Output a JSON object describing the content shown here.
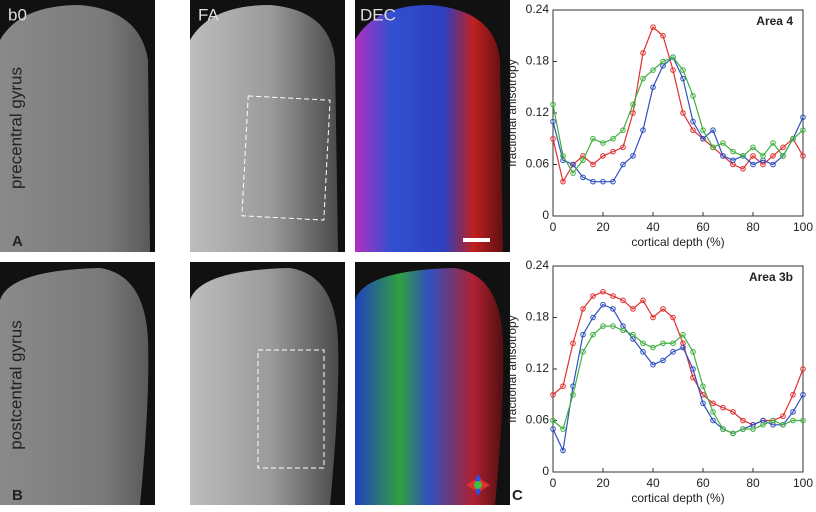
{
  "panels": {
    "columns": [
      "b0",
      "FA",
      "DEC"
    ],
    "rows": [
      "precentral gyrus",
      "postcentral gyrus"
    ],
    "letters": [
      "A",
      "B",
      "C"
    ]
  },
  "chart_data": [
    {
      "type": "line",
      "annotation": "Area 4",
      "x_label": "cortical depth (%)",
      "y_label": "fractional anisotropy",
      "x": [
        0,
        4,
        8,
        12,
        16,
        20,
        24,
        28,
        32,
        36,
        40,
        44,
        48,
        52,
        56,
        60,
        64,
        68,
        72,
        76,
        80,
        84,
        88,
        92,
        96,
        100
      ],
      "series": [
        {
          "color": "#e03030",
          "values": [
            0.09,
            0.04,
            0.06,
            0.07,
            0.06,
            0.07,
            0.075,
            0.08,
            0.12,
            0.19,
            0.22,
            0.21,
            0.17,
            0.12,
            0.1,
            0.09,
            0.08,
            0.07,
            0.06,
            0.055,
            0.07,
            0.06,
            0.07,
            0.08,
            0.09,
            0.07
          ]
        },
        {
          "color": "#3050c0",
          "values": [
            0.11,
            0.065,
            0.06,
            0.045,
            0.04,
            0.04,
            0.04,
            0.06,
            0.07,
            0.1,
            0.15,
            0.175,
            0.185,
            0.16,
            0.11,
            0.09,
            0.1,
            0.07,
            0.065,
            0.07,
            0.06,
            0.065,
            0.06,
            0.07,
            0.09,
            0.115
          ]
        },
        {
          "color": "#40b040",
          "values": [
            0.13,
            0.07,
            0.05,
            0.065,
            0.09,
            0.085,
            0.09,
            0.1,
            0.13,
            0.16,
            0.17,
            0.18,
            0.185,
            0.17,
            0.14,
            0.1,
            0.08,
            0.085,
            0.075,
            0.07,
            0.08,
            0.07,
            0.085,
            0.07,
            0.09,
            0.1
          ]
        }
      ],
      "xlim": [
        0,
        100
      ],
      "xticks": [
        0,
        20,
        40,
        60,
        80,
        100
      ],
      "ylim": [
        0,
        0.24
      ],
      "yticks": [
        0,
        0.06,
        0.12,
        0.18,
        0.24
      ]
    },
    {
      "type": "line",
      "annotation": "Area 3b",
      "x_label": "cortical depth (%)",
      "y_label": "fractional anisotropy",
      "x": [
        0,
        4,
        8,
        12,
        16,
        20,
        24,
        28,
        32,
        36,
        40,
        44,
        48,
        52,
        56,
        60,
        64,
        68,
        72,
        76,
        80,
        84,
        88,
        92,
        96,
        100
      ],
      "series": [
        {
          "color": "#e03030",
          "values": [
            0.09,
            0.1,
            0.15,
            0.19,
            0.205,
            0.21,
            0.205,
            0.2,
            0.19,
            0.2,
            0.18,
            0.19,
            0.18,
            0.15,
            0.11,
            0.09,
            0.08,
            0.075,
            0.07,
            0.06,
            0.055,
            0.06,
            0.06,
            0.065,
            0.09,
            0.12
          ]
        },
        {
          "color": "#3050c0",
          "values": [
            0.05,
            0.025,
            0.1,
            0.16,
            0.18,
            0.195,
            0.19,
            0.17,
            0.155,
            0.14,
            0.125,
            0.13,
            0.14,
            0.145,
            0.12,
            0.08,
            0.06,
            0.05,
            0.045,
            0.05,
            0.055,
            0.06,
            0.055,
            0.055,
            0.07,
            0.09
          ]
        },
        {
          "color": "#40b040",
          "values": [
            0.06,
            0.05,
            0.09,
            0.14,
            0.16,
            0.17,
            0.17,
            0.165,
            0.16,
            0.15,
            0.145,
            0.15,
            0.15,
            0.16,
            0.14,
            0.1,
            0.07,
            0.05,
            0.045,
            0.05,
            0.05,
            0.055,
            0.06,
            0.055,
            0.06,
            0.06
          ]
        }
      ],
      "xlim": [
        0,
        100
      ],
      "xticks": [
        0,
        20,
        40,
        60,
        80,
        100
      ],
      "ylim": [
        0,
        0.24
      ],
      "yticks": [
        0,
        0.06,
        0.12,
        0.18,
        0.24
      ]
    }
  ]
}
